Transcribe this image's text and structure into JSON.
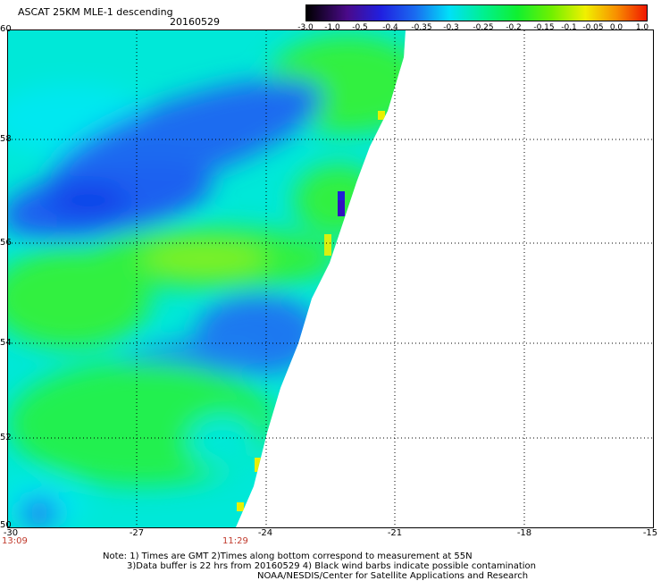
{
  "header": {
    "title": "ASCAT 25KM MLE-1 descending",
    "date": "20160529"
  },
  "colorbar": {
    "labels": [
      "-3.0",
      "-1.0",
      "-0.5",
      "-0.4",
      "-0.35",
      "-0.3",
      "-0.25",
      "-0.2",
      "-0.15",
      "-0.1",
      "-0.05",
      "0.0",
      "1.0"
    ],
    "colors": [
      "#000000",
      "#6a0aa8",
      "#2a2ad6",
      "#1a6cf0",
      "#1ea0f8",
      "#00e6f0",
      "#00f0a0",
      "#10f030",
      "#60f000",
      "#b8f000",
      "#f8f000",
      "#f89000",
      "#f02000"
    ]
  },
  "map": {
    "lat_labels": [
      "60",
      "58",
      "56",
      "54",
      "52",
      "50"
    ],
    "lon_labels": [
      "-30",
      "-27",
      "-24",
      "-21",
      "-18",
      "-15"
    ],
    "time_labels": [
      "13:09",
      "11:29"
    ]
  },
  "notes": [
    "Note: 1) Times are GMT 2)Times along bottom correspond to measurement at 55N",
    "3)Data buffer is 22 hrs from 20160529 4) Black wind barbs indicate possible contamination",
    "NOAA/NESDIS/Center for Satellite Applications and Research"
  ]
}
